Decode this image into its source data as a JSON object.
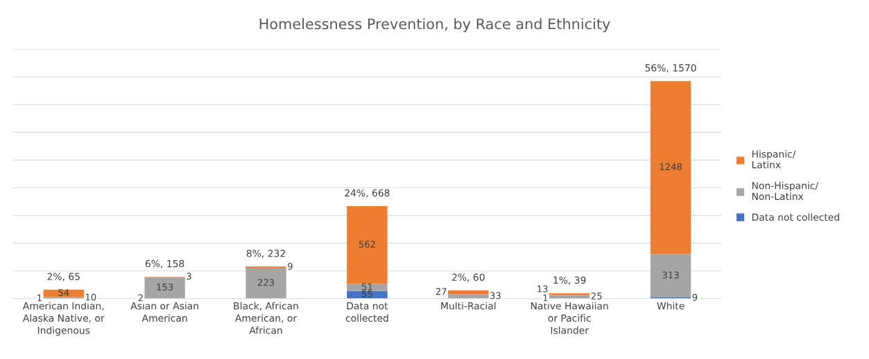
{
  "chart_data": {
    "type": "bar",
    "title": "Homelessness Prevention, by Race and Ethnicity",
    "categories": [
      "American Indian, Alaska Native, or Indigenous",
      "Asian or Asian American",
      "Black, African American, or African",
      "Data not collected",
      "Multi-Racial",
      "Native Hawaiian or Pacific Islander",
      "White"
    ],
    "stacked": true,
    "series": [
      {
        "name": "Data not collected",
        "color": "#4472c4",
        "values": [
          1,
          2,
          0,
          55,
          0,
          1,
          9
        ],
        "value_labels": [
          "1",
          "2",
          null,
          "55",
          null,
          "1",
          "9"
        ]
      },
      {
        "name": "Non-Hispanic/ Non-Latinx",
        "color": "#a5a5a5",
        "values": [
          10,
          153,
          223,
          51,
          33,
          25,
          313
        ],
        "value_labels": [
          "10",
          "153",
          "223",
          "51",
          "33",
          "25",
          "313"
        ]
      },
      {
        "name": "Hispanic/ Latinx",
        "color": "#ed7d31",
        "values": [
          54,
          3,
          9,
          562,
          27,
          13,
          1248
        ],
        "value_labels": [
          "54",
          "3",
          "9",
          "562",
          "27",
          "13",
          "1248"
        ]
      }
    ],
    "totals": [
      "2%, 65",
      "6%, 158",
      "8%, 232",
      "24%, 668",
      "2%, 60",
      "1%, 39",
      "56%, 1570"
    ],
    "ylim": [
      0,
      1800
    ],
    "yticks": [
      {
        "value": 0,
        "label": null
      },
      {
        "value": 200,
        "label": null
      },
      {
        "value": 400,
        "label": null
      },
      {
        "value": 600,
        "label": null
      },
      {
        "value": 800,
        "label": null
      },
      {
        "value": 1000,
        "label": null
      },
      {
        "value": 1200,
        "label": null
      },
      {
        "value": 1400,
        "label": null
      },
      {
        "value": 1600,
        "label": null
      },
      {
        "value": 1800,
        "label": null
      }
    ],
    "tick_labels": "x",
    "grid": "y",
    "legend": "right"
  }
}
